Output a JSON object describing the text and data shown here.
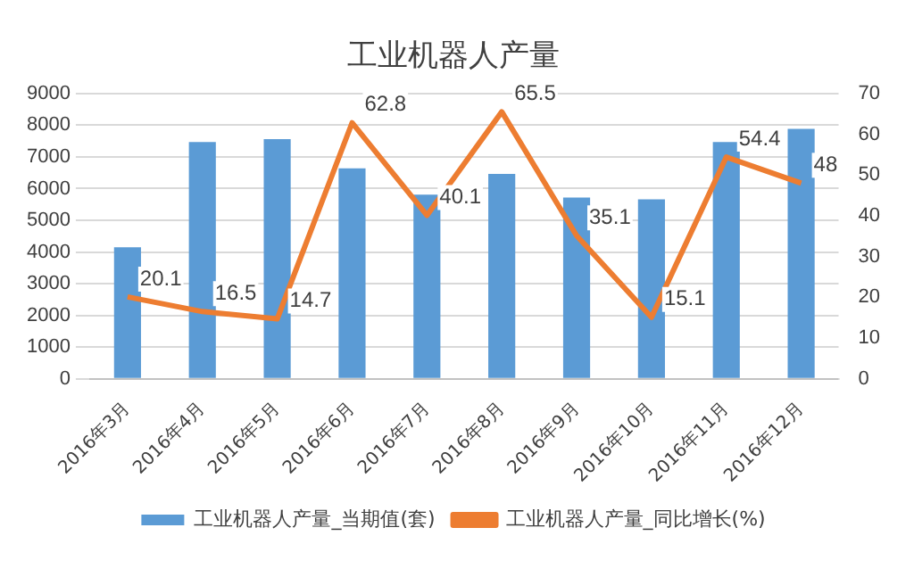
{
  "chart_data": {
    "type": "bar",
    "title": "工业机器人产量",
    "categories": [
      "2016年3月",
      "2016年4月",
      "2016年5月",
      "2016年6月",
      "2016年7月",
      "2016年8月",
      "2016年9月",
      "2016年10月",
      "2016年11月",
      "2016年12月"
    ],
    "series": [
      {
        "name": "工业机器人产量_当期值(套)",
        "color": "#5b9bd5",
        "values": [
          4150,
          7470,
          7560,
          6640,
          5810,
          6460,
          5720,
          5660,
          7470,
          7880
        ]
      },
      {
        "name": "工业机器人产量_同比增长(%)",
        "type": "line",
        "axis": "y2",
        "color": "#ed7d31",
        "values": [
          20.1,
          16.5,
          14.7,
          62.8,
          40.1,
          65.5,
          35.1,
          15.1,
          54.4,
          48
        ],
        "value_labels": [
          "20.1",
          "16.5",
          "14.7",
          "62.8",
          "40.1",
          "65.5",
          "35.1",
          "15.1",
          "54.4",
          "48"
        ]
      }
    ],
    "ylim": [
      0,
      9000
    ],
    "yticks": [
      0,
      1000,
      2000,
      3000,
      4000,
      5000,
      6000,
      7000,
      8000,
      9000
    ],
    "y2lim": [
      0,
      70
    ],
    "y2ticks": [
      0,
      10,
      20,
      30,
      40,
      50,
      60,
      70
    ],
    "grid": "y",
    "legend": "bottom",
    "marker": "none",
    "line_style": "solid"
  }
}
